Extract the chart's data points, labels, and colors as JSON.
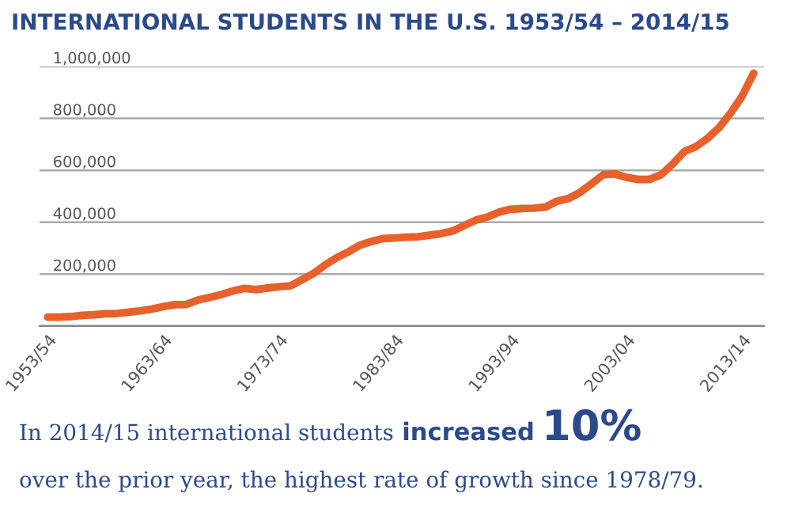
{
  "chart_data": {
    "type": "line",
    "title": "INTERNATIONAL STUDENTS IN THE U.S. 1953/54 – 2014/15",
    "categories": [
      "1953/54",
      null,
      null,
      null,
      null,
      null,
      null,
      null,
      null,
      null,
      "1963/64",
      null,
      null,
      null,
      null,
      null,
      null,
      null,
      null,
      null,
      "1973/74",
      null,
      null,
      null,
      null,
      null,
      null,
      null,
      null,
      null,
      "1983/84",
      null,
      null,
      null,
      null,
      null,
      null,
      null,
      null,
      null,
      "1993/94",
      null,
      null,
      null,
      null,
      null,
      null,
      null,
      null,
      null,
      "2003/04",
      null,
      null,
      null,
      null,
      null,
      null,
      null,
      null,
      null,
      "2013/14",
      null
    ],
    "series": [
      {
        "color": "#e8602c",
        "values": [
          34000,
          34000,
          36000,
          41000,
          43000,
          47000,
          48000,
          53000,
          58000,
          65000,
          75000,
          82000,
          83000,
          100000,
          110000,
          121000,
          135000,
          145000,
          140000,
          146000,
          151000,
          155000,
          179000,
          203000,
          236000,
          264000,
          286000,
          312000,
          326000,
          337000,
          339000,
          342000,
          344000,
          350000,
          356000,
          366000,
          387000,
          408000,
          420000,
          439000,
          450000,
          453000,
          454000,
          458000,
          481000,
          491000,
          515000,
          548000,
          583000,
          586000,
          573000,
          565000,
          565000,
          583000,
          624000,
          672000,
          691000,
          723000,
          764000,
          820000,
          886000,
          975000
        ]
      }
    ],
    "ylim": [
      0,
      1000000
    ],
    "yticks": [
      {
        "value": 0,
        "label": null
      },
      {
        "value": 200000,
        "label": "200,000"
      },
      {
        "value": 400000,
        "label": "400,000"
      },
      {
        "value": 600000,
        "label": "600,000"
      },
      {
        "value": 800000,
        "label": "800,000"
      },
      {
        "value": 1000000,
        "label": "1,000,000"
      }
    ],
    "grid": "y",
    "marker": "none",
    "line_style": "solid",
    "annotations": [
      "In 2014/15 international students",
      "increased",
      "10%",
      "over the prior year, the highest rate of growth since 1978/79."
    ]
  }
}
